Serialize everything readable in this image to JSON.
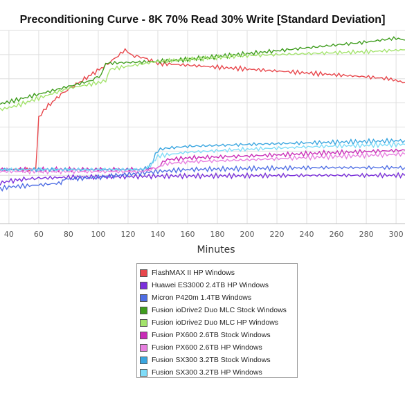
{
  "chart_data": {
    "type": "line",
    "title": "Preconditioning Curve - 8K 70% Read 30% Write [Standard Deviation]",
    "xlabel": "Minutes",
    "ylabel": "",
    "xlim": [
      34,
      306
    ],
    "ylim": [
      0,
      100
    ],
    "x_ticks": [
      40,
      60,
      80,
      100,
      120,
      140,
      160,
      180,
      200,
      220,
      240,
      260,
      280,
      300
    ],
    "grid": true,
    "legend_position": "bottom-center",
    "series": [
      {
        "name": "FlashMAX II HP Windows",
        "color": "#e8474c",
        "points": [
          [
            34,
            28
          ],
          [
            45,
            28
          ],
          [
            55,
            28
          ],
          [
            58,
            28
          ],
          [
            60,
            55
          ],
          [
            65,
            60
          ],
          [
            75,
            67
          ],
          [
            85,
            72
          ],
          [
            95,
            77
          ],
          [
            105,
            82
          ],
          [
            112,
            86
          ],
          [
            118,
            90
          ],
          [
            123,
            87
          ],
          [
            130,
            86
          ],
          [
            140,
            83
          ],
          [
            160,
            82
          ],
          [
            180,
            81
          ],
          [
            200,
            80
          ],
          [
            220,
            79
          ],
          [
            240,
            78
          ],
          [
            260,
            77
          ],
          [
            280,
            76
          ],
          [
            295,
            75
          ],
          [
            306,
            73
          ]
        ]
      },
      {
        "name": "Huawei ES3000 2.4TB HP Windows",
        "color": "#7b2fdc",
        "points": [
          [
            34,
            21
          ],
          [
            40,
            22
          ],
          [
            50,
            23
          ],
          [
            60,
            23.5
          ],
          [
            80,
            24
          ],
          [
            100,
            24.2
          ],
          [
            140,
            24.6
          ],
          [
            200,
            24.8
          ],
          [
            250,
            25
          ],
          [
            306,
            25
          ]
        ]
      },
      {
        "name": "Micron P420m 1.4TB Windows",
        "color": "#4f6ee4",
        "points": [
          [
            34,
            18
          ],
          [
            40,
            19
          ],
          [
            60,
            20
          ],
          [
            75,
            21
          ],
          [
            77,
            23
          ],
          [
            100,
            24
          ],
          [
            140,
            27
          ],
          [
            160,
            28
          ],
          [
            200,
            28.5
          ],
          [
            250,
            29
          ],
          [
            306,
            29
          ]
        ]
      },
      {
        "name": "Fusion ioDrive2 Duo MLC Stock Windows",
        "color": "#3f9d1e",
        "points": [
          [
            34,
            62
          ],
          [
            45,
            64
          ],
          [
            60,
            67
          ],
          [
            80,
            71
          ],
          [
            95,
            74
          ],
          [
            102,
            77
          ],
          [
            105,
            83
          ],
          [
            140,
            84
          ],
          [
            160,
            85
          ],
          [
            200,
            88
          ],
          [
            240,
            91
          ],
          [
            280,
            94
          ],
          [
            300,
            96
          ],
          [
            306,
            95
          ]
        ]
      },
      {
        "name": "Fusion ioDrive2 Duo MLC HP Windows",
        "color": "#a3e36c",
        "points": [
          [
            34,
            59
          ],
          [
            45,
            61
          ],
          [
            60,
            65
          ],
          [
            80,
            70
          ],
          [
            100,
            73
          ],
          [
            105,
            74
          ],
          [
            108,
            80
          ],
          [
            140,
            84
          ],
          [
            160,
            85
          ],
          [
            200,
            87
          ],
          [
            240,
            88
          ],
          [
            280,
            89
          ],
          [
            306,
            90
          ]
        ]
      },
      {
        "name": "Fusion PX600 2.6TB Stock Windows",
        "color": "#c92bb7",
        "points": [
          [
            34,
            28
          ],
          [
            60,
            28
          ],
          [
            100,
            28
          ],
          [
            130,
            28
          ],
          [
            140,
            29
          ],
          [
            145,
            33
          ],
          [
            160,
            34
          ],
          [
            200,
            35
          ],
          [
            250,
            36.5
          ],
          [
            306,
            38
          ]
        ]
      },
      {
        "name": "Fusion PX600 2.6TB HP Windows",
        "color": "#e880e0",
        "points": [
          [
            34,
            27
          ],
          [
            60,
            27
          ],
          [
            100,
            27
          ],
          [
            130,
            27
          ],
          [
            140,
            29
          ],
          [
            145,
            31
          ],
          [
            160,
            32
          ],
          [
            200,
            33
          ],
          [
            250,
            34.5
          ],
          [
            306,
            36
          ]
        ]
      },
      {
        "name": "Fusion SX300 3.2TB Stock Windows",
        "color": "#3aa6e0",
        "points": [
          [
            34,
            28
          ],
          [
            60,
            28
          ],
          [
            100,
            28
          ],
          [
            130,
            28
          ],
          [
            135,
            30
          ],
          [
            140,
            38
          ],
          [
            145,
            39
          ],
          [
            160,
            40
          ],
          [
            200,
            41
          ],
          [
            250,
            42
          ],
          [
            306,
            43
          ]
        ]
      },
      {
        "name": "Fusion SX300 3.2TB HP Windows",
        "color": "#7fdcf8",
        "points": [
          [
            34,
            28
          ],
          [
            60,
            28
          ],
          [
            100,
            28
          ],
          [
            130,
            28
          ],
          [
            135,
            30
          ],
          [
            140,
            35
          ],
          [
            160,
            37
          ],
          [
            200,
            38.5
          ],
          [
            250,
            40
          ],
          [
            306,
            41
          ]
        ]
      }
    ]
  }
}
